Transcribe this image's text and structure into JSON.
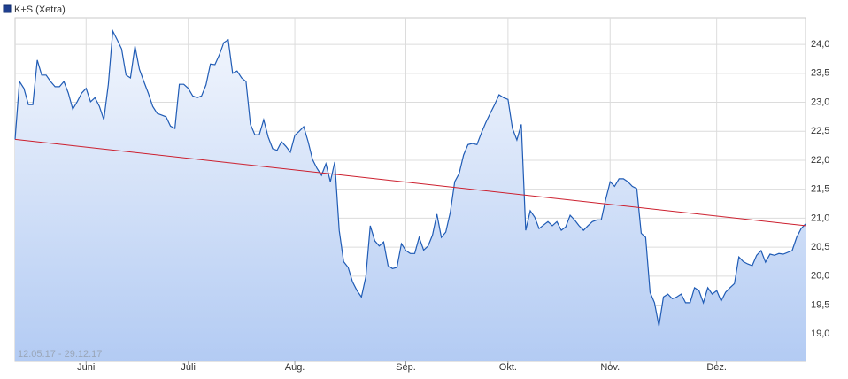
{
  "chart_data": {
    "type": "area-line",
    "series": [
      {
        "name": "K+S (Xetra)",
        "color": "#1f5bb5",
        "values": [
          22.36,
          23.36,
          23.24,
          22.96,
          22.96,
          23.73,
          23.47,
          23.47,
          23.36,
          23.27,
          23.27,
          23.36,
          23.16,
          22.88,
          23.01,
          23.16,
          23.24,
          23.01,
          23.08,
          22.93,
          22.7,
          23.31,
          24.23,
          24.08,
          23.92,
          23.47,
          23.42,
          23.97,
          23.57,
          23.36,
          23.16,
          22.93,
          22.81,
          22.78,
          22.75,
          22.59,
          22.55,
          23.31,
          23.31,
          23.24,
          23.11,
          23.08,
          23.11,
          23.3,
          23.66,
          23.65,
          23.82,
          24.03,
          24.08,
          23.5,
          23.54,
          23.42,
          23.36,
          22.62,
          22.44,
          22.44,
          22.7,
          22.4,
          22.2,
          22.17,
          22.32,
          22.24,
          22.14,
          22.43,
          22.5,
          22.58,
          22.32,
          22.01,
          21.86,
          21.74,
          21.94,
          21.63,
          21.97,
          20.79,
          20.25,
          20.15,
          19.9,
          19.75,
          19.64,
          19.99,
          20.87,
          20.61,
          20.52,
          20.59,
          20.18,
          20.13,
          20.15,
          20.56,
          20.44,
          20.39,
          20.39,
          20.67,
          20.45,
          20.52,
          20.71,
          21.07,
          20.67,
          20.76,
          21.1,
          21.63,
          21.77,
          22.09,
          22.27,
          22.29,
          22.27,
          22.47,
          22.65,
          22.81,
          22.96,
          23.13,
          23.08,
          23.05,
          22.55,
          22.35,
          22.62,
          20.79,
          21.13,
          21.02,
          20.82,
          20.88,
          20.94,
          20.87,
          20.94,
          20.79,
          20.85,
          21.05,
          20.97,
          20.87,
          20.79,
          20.87,
          20.94,
          20.97,
          20.97,
          21.32,
          21.63,
          21.55,
          21.68,
          21.68,
          21.63,
          21.55,
          21.51,
          20.74,
          20.67,
          19.72,
          19.54,
          19.14,
          19.64,
          19.69,
          19.61,
          19.64,
          19.69,
          19.54,
          19.54,
          19.8,
          19.75,
          19.54,
          19.8,
          19.69,
          19.75,
          19.57,
          19.72,
          19.8,
          19.87,
          20.33,
          20.25,
          20.21,
          20.18,
          20.36,
          20.44,
          20.24,
          20.38,
          20.36,
          20.39,
          20.38,
          20.41,
          20.44,
          20.67,
          20.82,
          20.9
        ]
      }
    ],
    "trendline": {
      "color": "#cc1f2e",
      "values": [
        22.36,
        20.87
      ]
    },
    "date_range": "12.05.17 - 29.12.17",
    "xlim": [
      0,
      178
    ],
    "xticks": [
      {
        "value": 16,
        "label": "Juni"
      },
      {
        "value": 39,
        "label": "Juli"
      },
      {
        "value": 63,
        "label": "Aug."
      },
      {
        "value": 88,
        "label": "Sep."
      },
      {
        "value": 111,
        "label": "Okt."
      },
      {
        "value": 134,
        "label": "Nov."
      },
      {
        "value": 158,
        "label": "Dez."
      }
    ],
    "ylim": [
      18.53,
      24.46
    ],
    "yticks": [
      {
        "value": 19,
        "label": "19,0"
      },
      {
        "value": 19.5,
        "label": "19,5"
      },
      {
        "value": 20,
        "label": "20,0"
      },
      {
        "value": 20.5,
        "label": "20,5"
      },
      {
        "value": 21,
        "label": "21,0"
      },
      {
        "value": 21.5,
        "label": "21,5"
      },
      {
        "value": 22,
        "label": "22,0"
      },
      {
        "value": 22.5,
        "label": "22,5"
      },
      {
        "value": 23,
        "label": "23,0"
      },
      {
        "value": 23.5,
        "label": "23,5"
      },
      {
        "value": 24,
        "label": "24,0"
      }
    ],
    "grid": true
  }
}
